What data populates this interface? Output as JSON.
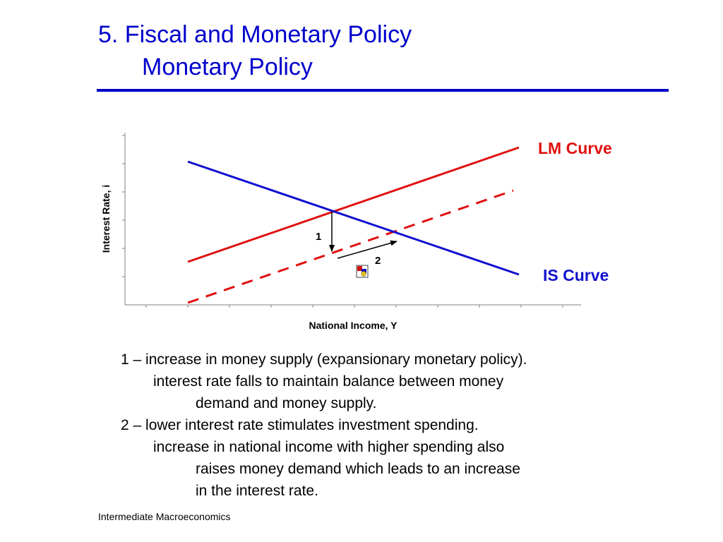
{
  "slide": {
    "title_line1": "5.  Fiscal and Monetary Policy",
    "title_line2": "Monetary Policy",
    "footer": "Intermediate Macroeconomics"
  },
  "diagram": {
    "y_axis_label": "Interest Rate, i",
    "x_axis_label": "National Income, Y",
    "lm_label": "LM Curve",
    "is_label": "IS Curve",
    "step1_label": "1",
    "step2_label": "2",
    "colors": {
      "lm": "#e01010",
      "is": "#1010d0",
      "axis": "#808080",
      "arrow": "#000000"
    }
  },
  "notes": [
    {
      "lines": [
        "1 – increase in money supply (expansionary monetary policy).",
        "interest rate falls to maintain balance between money",
        "demand and money supply."
      ]
    },
    {
      "lines": [
        "2 – lower interest rate stimulates investment spending.",
        "increase in national income with higher spending also",
        "raises money demand which leads to an increase",
        "in the interest rate."
      ]
    }
  ]
}
